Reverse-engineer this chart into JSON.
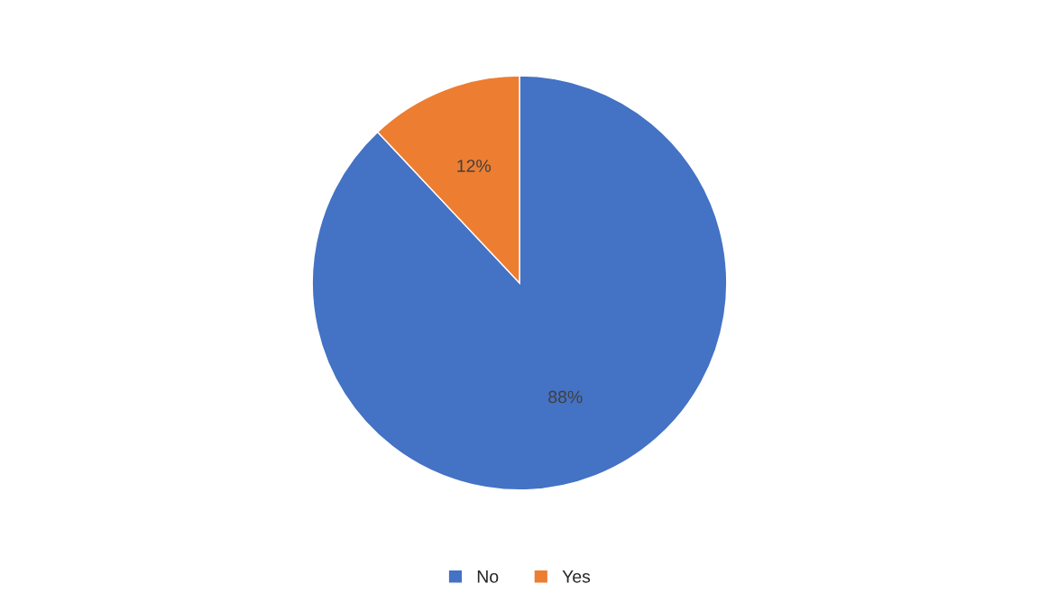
{
  "chart_data": {
    "type": "pie",
    "categories": [
      "No",
      "Yes"
    ],
    "values": [
      88,
      12
    ],
    "colors": [
      "#4472c4",
      "#ed7d31"
    ],
    "value_labels": [
      "88%",
      "12%"
    ],
    "legend": "bottom"
  }
}
